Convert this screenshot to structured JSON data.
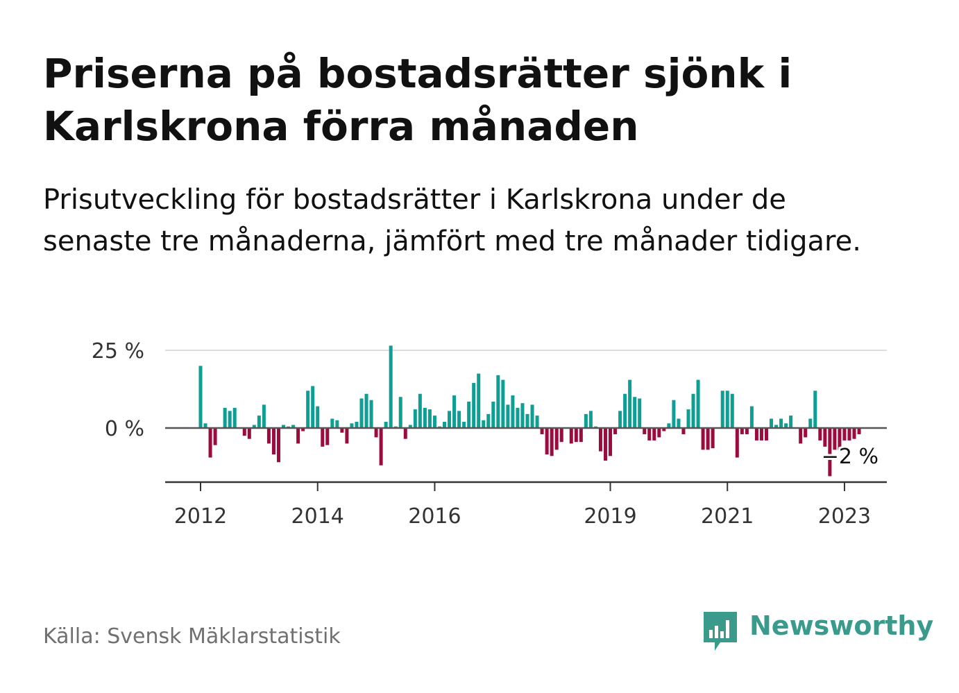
{
  "title": "Priserna på bostadsrätter sjönk i Karlskrona förra månaden",
  "subtitle": "Prisutveckling för bostadsrätter i Karlskrona under de senaste tre månaderna, jämfört med tre månader tidigare.",
  "source": "Källa: Svensk Mäklarstatistik",
  "logo_text": "Newsworthy",
  "colors": {
    "positive": "#0e9e94",
    "negative": "#9b0b3e",
    "brand": "#3a9a8c",
    "text": "#111111",
    "muted": "#707070"
  },
  "chart_data": {
    "type": "bar",
    "title": "Priserna på bostadsrätter sjönk i Karlskrona förra månaden",
    "x_start": "2012-01",
    "x_end": "2023-01",
    "x_tick_labels": [
      "2012",
      "2014",
      "2016",
      "2019",
      "2021",
      "2023"
    ],
    "y_tick_labels": [
      "25 %",
      "0 %"
    ],
    "ylim": [
      -17,
      27
    ],
    "grid": true,
    "annotation": "−2 %",
    "series": [
      {
        "values": [
          20,
          1.5,
          -9.5,
          -5.5,
          0,
          6.5,
          5.5,
          6.5,
          0,
          -2.5,
          -3.5,
          1,
          4,
          7.5,
          -5,
          -8.5,
          -11,
          1,
          0.5,
          1,
          -5,
          -1,
          12,
          13.5,
          7,
          -6,
          -5.5,
          3,
          2.5,
          -1.5,
          -5,
          1.5,
          2,
          9.5,
          11,
          9,
          -3,
          -12,
          2,
          26.5,
          0.5,
          10,
          -3.5,
          1,
          6,
          11,
          6.5,
          6,
          4,
          0.5,
          2,
          5.5,
          10.5,
          5.5,
          2,
          8.5,
          14.5,
          17.5,
          2.5,
          4.5,
          8.5,
          17,
          15.5,
          7.5,
          10.5,
          6.5,
          8,
          4.5,
          7.5,
          4,
          -2,
          -8.5,
          -9,
          -7,
          -4.5,
          0,
          -5,
          -4.5,
          -4.5,
          4.5,
          5.5,
          0.5,
          -7.5,
          -10.5,
          -9,
          -2,
          5.5,
          11,
          15.5,
          10,
          9.5,
          -2,
          -4,
          -4,
          -3,
          -1,
          1.5,
          9,
          3,
          -2,
          6,
          11,
          15.5,
          -7,
          -7,
          -6.5,
          0,
          12,
          12,
          11,
          -9.5,
          -2,
          -2,
          7,
          -4,
          -4,
          -4,
          3,
          1,
          3,
          1.5,
          4,
          0,
          -5,
          -3,
          3,
          12,
          -4,
          -6,
          -15.5,
          -7,
          -7,
          -4,
          -4,
          -3.5,
          -2
        ]
      }
    ]
  }
}
